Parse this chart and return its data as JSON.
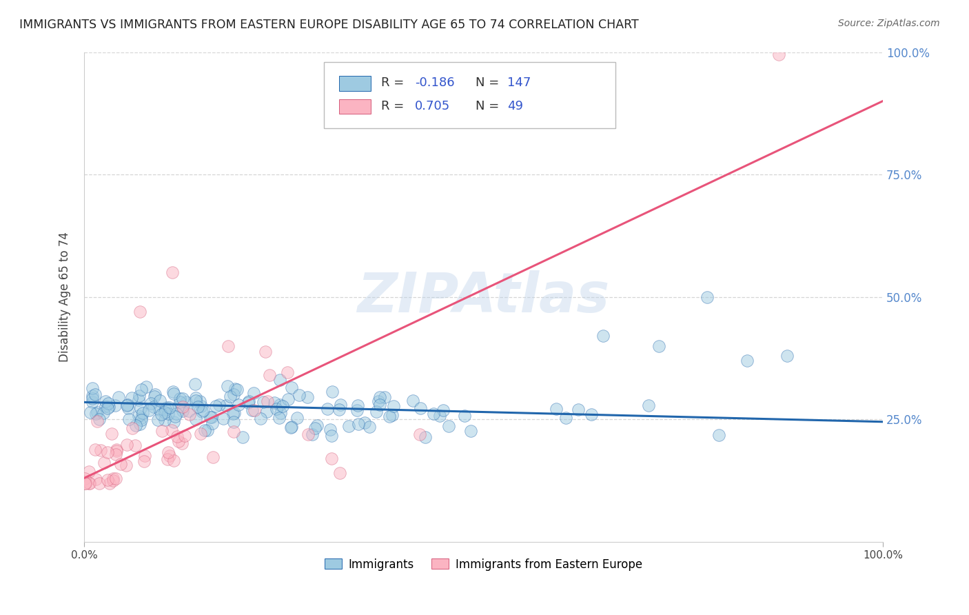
{
  "title": "IMMIGRANTS VS IMMIGRANTS FROM EASTERN EUROPE DISABILITY AGE 65 TO 74 CORRELATION CHART",
  "source": "Source: ZipAtlas.com",
  "ylabel": "Disability Age 65 to 74",
  "xlim": [
    0.0,
    1.0
  ],
  "ylim": [
    0.0,
    1.0
  ],
  "blue_R": -0.186,
  "blue_N": 147,
  "pink_R": 0.705,
  "pink_N": 49,
  "blue_color": "#9ecae1",
  "pink_color": "#fbb4c2",
  "blue_line_color": "#2166ac",
  "pink_line_color": "#e8547a",
  "watermark": "ZIPAtlas",
  "legend_label_blue": "Immigrants",
  "legend_label_pink": "Immigrants from Eastern Europe",
  "right_yticks": [
    0.25,
    0.5,
    0.75,
    1.0
  ],
  "right_yticklabels": [
    "25.0%",
    "50.0%",
    "75.0%",
    "100.0%"
  ],
  "blue_line_y0": 0.285,
  "blue_line_y1": 0.245,
  "pink_line_y0": 0.13,
  "pink_line_y1": 0.9
}
